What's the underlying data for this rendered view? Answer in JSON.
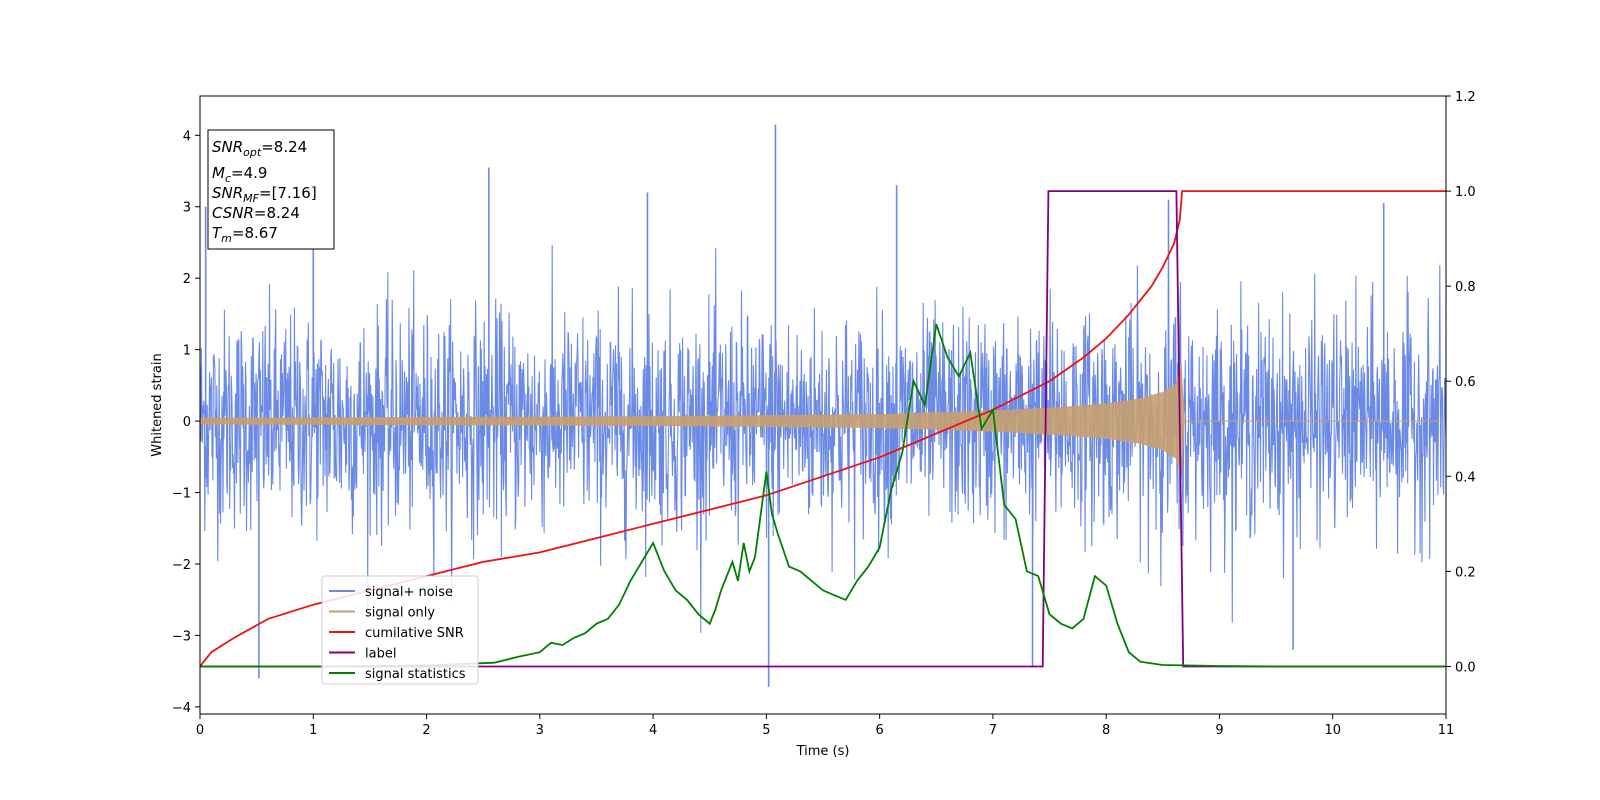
{
  "chart_data": {
    "type": "line",
    "xlabel": "Time (s)",
    "ylabel": "Whitened strain",
    "xlim": [
      0,
      11
    ],
    "ylim_left": [
      -4.1,
      4.55
    ],
    "ylim_right": [
      -0.1,
      1.2
    ],
    "x_ticks": [
      "0",
      "1",
      "2",
      "3",
      "4",
      "5",
      "6",
      "7",
      "8",
      "9",
      "10",
      "11"
    ],
    "y_left_ticks": [
      "−4",
      "−3",
      "−2",
      "−1",
      "0",
      "1",
      "2",
      "3",
      "4"
    ],
    "y_right_ticks": [
      "0.0",
      "0.2",
      "0.4",
      "0.6",
      "0.8",
      "1.0",
      "1.2"
    ],
    "legend_position": "lower-left",
    "info_box": {
      "snr_opt": {
        "main": "SNR",
        "sub": "opt",
        "value": "=8.24"
      },
      "mc": {
        "main": "M",
        "sub": "c",
        "value": "=4.9"
      },
      "snr_mf": {
        "main": "SNR",
        "sub": "MF",
        "value": "=[7.16]"
      },
      "csnr": {
        "main": "CSNR",
        "sub": "",
        "value": "=8.24"
      },
      "tm": {
        "main": "T",
        "sub": "m",
        "value": "=8.67"
      }
    },
    "series": [
      {
        "name": "signal+ noise",
        "color": "#6b8ae6",
        "axis": "left",
        "noise_std": 0.75,
        "spikes": [
          [
            0.05,
            3.0
          ],
          [
            0.52,
            -3.6
          ],
          [
            1.0,
            2.7
          ],
          [
            2.55,
            3.55
          ],
          [
            3.95,
            3.2
          ],
          [
            5.02,
            -3.72
          ],
          [
            5.08,
            4.15
          ],
          [
            6.15,
            3.3
          ],
          [
            7.35,
            -3.45
          ],
          [
            8.55,
            3.1
          ],
          [
            10.45,
            3.05
          ],
          [
            9.65,
            -3.2
          ]
        ]
      },
      {
        "name": "signal only",
        "color": "#c89f70",
        "axis": "left",
        "envelope": [
          [
            0,
            0.04
          ],
          [
            2,
            0.05
          ],
          [
            4,
            0.06
          ],
          [
            6,
            0.09
          ],
          [
            7,
            0.14
          ],
          [
            7.6,
            0.19
          ],
          [
            8.0,
            0.24
          ],
          [
            8.3,
            0.31
          ],
          [
            8.5,
            0.4
          ],
          [
            8.62,
            0.52
          ],
          [
            8.67,
            0.85
          ],
          [
            8.68,
            0.0
          ],
          [
            11,
            0.0
          ]
        ]
      },
      {
        "name": "cumilative SNR",
        "color": "#ee1111",
        "axis": "right",
        "x": [
          0,
          0.1,
          0.3,
          0.6,
          1.0,
          1.5,
          2.0,
          2.5,
          3.0,
          3.5,
          4.0,
          4.5,
          5.0,
          5.5,
          6.0,
          6.5,
          7.0,
          7.5,
          7.8,
          8.0,
          8.2,
          8.4,
          8.5,
          8.6,
          8.65,
          8.67,
          9.0,
          10.0,
          11.0
        ],
        "y": [
          0.0,
          0.03,
          0.06,
          0.1,
          0.13,
          0.16,
          0.19,
          0.22,
          0.24,
          0.27,
          0.3,
          0.33,
          0.36,
          0.4,
          0.44,
          0.49,
          0.54,
          0.6,
          0.65,
          0.69,
          0.74,
          0.8,
          0.84,
          0.89,
          0.94,
          1.0,
          1.0,
          1.0,
          1.0
        ]
      },
      {
        "name": "label",
        "color": "#800080",
        "axis": "right",
        "x": [
          0,
          7.44,
          7.49,
          8.62,
          8.68,
          11
        ],
        "y": [
          0,
          0,
          1,
          1,
          0,
          0
        ]
      },
      {
        "name": "signal statistics",
        "color": "#008000",
        "axis": "right",
        "x": [
          0,
          1,
          2,
          2.6,
          2.8,
          3.0,
          3.1,
          3.2,
          3.3,
          3.4,
          3.5,
          3.6,
          3.7,
          3.8,
          3.9,
          4.0,
          4.1,
          4.2,
          4.3,
          4.4,
          4.5,
          4.55,
          4.6,
          4.7,
          4.75,
          4.8,
          4.85,
          4.9,
          5.0,
          5.05,
          5.1,
          5.2,
          5.3,
          5.4,
          5.5,
          5.6,
          5.7,
          5.8,
          5.9,
          6.0,
          6.1,
          6.2,
          6.3,
          6.4,
          6.5,
          6.6,
          6.7,
          6.8,
          6.9,
          7.0,
          7.1,
          7.2,
          7.3,
          7.4,
          7.5,
          7.6,
          7.7,
          7.8,
          7.9,
          8.0,
          8.1,
          8.2,
          8.3,
          8.5,
          9.0,
          9.5,
          10.0,
          11.0
        ],
        "y": [
          0.0,
          0.0,
          0.002,
          0.008,
          0.02,
          0.03,
          0.05,
          0.045,
          0.06,
          0.07,
          0.09,
          0.1,
          0.13,
          0.18,
          0.22,
          0.26,
          0.2,
          0.16,
          0.14,
          0.11,
          0.09,
          0.12,
          0.16,
          0.22,
          0.18,
          0.26,
          0.2,
          0.23,
          0.41,
          0.32,
          0.28,
          0.21,
          0.2,
          0.18,
          0.16,
          0.15,
          0.14,
          0.18,
          0.21,
          0.25,
          0.37,
          0.45,
          0.6,
          0.55,
          0.72,
          0.65,
          0.61,
          0.66,
          0.5,
          0.54,
          0.34,
          0.31,
          0.2,
          0.19,
          0.11,
          0.09,
          0.08,
          0.1,
          0.19,
          0.17,
          0.09,
          0.03,
          0.01,
          0.003,
          0.001,
          0.0,
          0.0,
          0.0
        ]
      }
    ]
  }
}
